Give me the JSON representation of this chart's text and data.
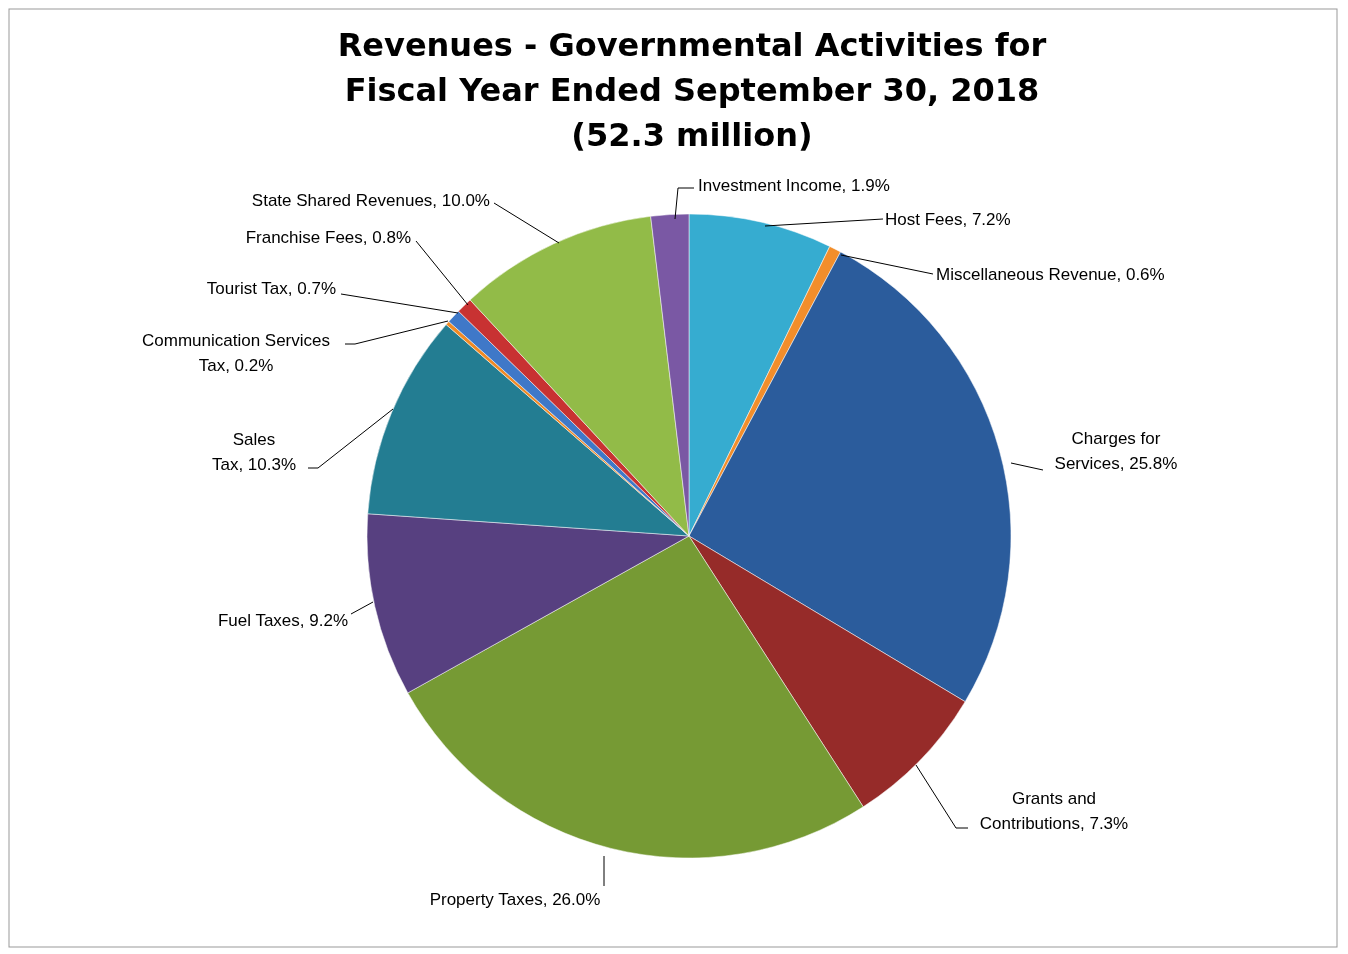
{
  "chart_data": {
    "type": "pie",
    "title": "Revenues - Governmental Activities for\nFiscal Year Ended September 30, 2018\n(52.3 million)",
    "categories": [
      "Host Fees",
      "Miscellaneous Revenue",
      "Charges for Services",
      "Grants and Contributions",
      "Property Taxes",
      "Fuel Taxes",
      "Sales Tax",
      "Communication Services Tax",
      "Tourist Tax",
      "Franchise Fees",
      "State Shared Revenues",
      "Investment Income"
    ],
    "values": [
      7.2,
      0.6,
      25.8,
      7.3,
      26.0,
      9.2,
      10.3,
      0.2,
      0.7,
      0.8,
      10.0,
      1.9
    ],
    "value_labels": [
      "7.2%",
      "0.6%",
      "25.8%",
      "7.3%",
      "26.0%",
      "9.2%",
      "10.3%",
      "0.2%",
      "0.7%",
      "0.8%",
      "10.0%",
      "1.9%"
    ],
    "colors": [
      "#36acd0",
      "#f28e2b",
      "#2b5c9c",
      "#962b29",
      "#769a34",
      "#574080",
      "#237d92",
      "#f08a24",
      "#3f78c8",
      "#c83232",
      "#92bb48",
      "#7a58a4"
    ],
    "data_labels": true
  }
}
